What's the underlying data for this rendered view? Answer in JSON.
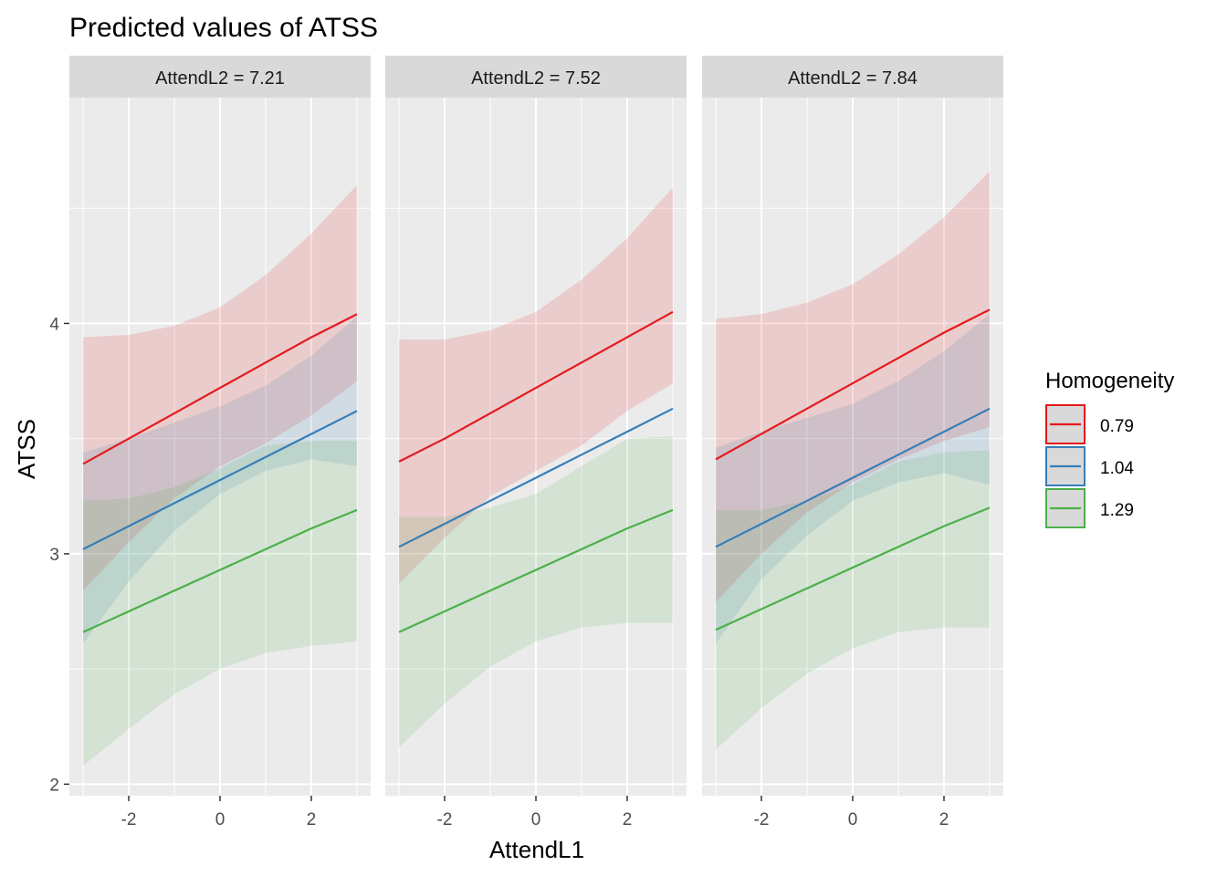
{
  "chart_data": {
    "type": "line",
    "title": "Predicted values of ATSS",
    "xlabel": "AttendL1",
    "ylabel": "ATSS",
    "xlim": [
      -3.3,
      3.3
    ],
    "ylim": [
      1.95,
      4.98
    ],
    "x_ticks": [
      -2,
      0,
      2
    ],
    "x_tick_labels": [
      "-2",
      "0",
      "2"
    ],
    "y_ticks": [
      2,
      3,
      4
    ],
    "y_tick_labels": [
      "2",
      "3",
      "4"
    ],
    "grid": true,
    "legend": {
      "title": "Homogeneity",
      "position": "right",
      "entries": [
        {
          "label": "0.79",
          "color": "#E41A1C"
        },
        {
          "label": "1.04",
          "color": "#377EB8"
        },
        {
          "label": "1.29",
          "color": "#4DAF4A"
        }
      ]
    },
    "x": [
      -3,
      -2,
      -1,
      0,
      1,
      2,
      3
    ],
    "panels": [
      {
        "strip": "AttendL2 = 7.21",
        "series": [
          {
            "name": "0.79",
            "color": "#E41A1C",
            "values": [
              3.39,
              3.5,
              3.61,
              3.72,
              3.83,
              3.94,
              4.04
            ],
            "lower": [
              2.84,
              3.05,
              3.24,
              3.38,
              3.48,
              3.6,
              3.75
            ],
            "upper": [
              3.94,
              3.95,
              3.99,
              4.07,
              4.21,
              4.39,
              4.6
            ]
          },
          {
            "name": "1.04",
            "color": "#377EB8",
            "values": [
              3.02,
              3.12,
              3.22,
              3.32,
              3.42,
              3.52,
              3.62
            ],
            "lower": [
              2.61,
              2.88,
              3.1,
              3.26,
              3.36,
              3.41,
              3.38
            ],
            "upper": [
              3.44,
              3.5,
              3.57,
              3.64,
              3.73,
              3.86,
              4.03
            ]
          },
          {
            "name": "1.29",
            "color": "#4DAF4A",
            "values": [
              2.66,
              2.75,
              2.84,
              2.93,
              3.02,
              3.11,
              3.19
            ],
            "lower": [
              2.08,
              2.24,
              2.39,
              2.5,
              2.57,
              2.6,
              2.62
            ],
            "upper": [
              3.23,
              3.24,
              3.29,
              3.37,
              3.47,
              3.49,
              3.49
            ]
          }
        ]
      },
      {
        "strip": "AttendL2 = 7.52",
        "series": [
          {
            "name": "0.79",
            "color": "#E41A1C",
            "values": [
              3.4,
              3.5,
              3.61,
              3.72,
              3.83,
              3.94,
              4.05
            ],
            "lower": [
              2.87,
              3.07,
              3.25,
              3.36,
              3.47,
              3.62,
              3.74
            ],
            "upper": [
              3.93,
              3.93,
              3.97,
              4.05,
              4.19,
              4.37,
              4.59
            ]
          },
          {
            "name": "1.04",
            "color": "#377EB8",
            "values": [
              3.03,
              3.13,
              3.23,
              3.33,
              3.43,
              3.53,
              3.63
            ],
            "lower": [
              2.67,
              2.91,
              3.11,
              3.24,
              3.32,
              3.38,
              3.36
            ]
          },
          {
            "name": "1.29",
            "color": "#4DAF4A",
            "values": [
              2.66,
              2.75,
              2.84,
              2.93,
              3.02,
              3.11,
              3.19
            ],
            "lower": [
              2.16,
              2.35,
              2.51,
              2.62,
              2.68,
              2.7,
              2.7
            ],
            "upper": [
              3.16,
              3.16,
              3.2,
              3.26,
              3.38,
              3.5,
              3.51
            ]
          }
        ]
      },
      {
        "strip": "AttendL2 = 7.84",
        "series": [
          {
            "name": "0.79",
            "color": "#E41A1C",
            "values": [
              3.41,
              3.52,
              3.63,
              3.74,
              3.85,
              3.96,
              4.06
            ],
            "lower": [
              2.79,
              3.0,
              3.18,
              3.31,
              3.41,
              3.49,
              3.55
            ],
            "upper": [
              4.02,
              4.04,
              4.09,
              4.17,
              4.3,
              4.46,
              4.66
            ]
          },
          {
            "name": "1.04",
            "color": "#377EB8",
            "values": [
              3.03,
              3.13,
              3.23,
              3.33,
              3.43,
              3.53,
              3.63
            ],
            "lower": [
              2.61,
              2.89,
              3.08,
              3.23,
              3.31,
              3.35,
              3.3
            ],
            "upper": [
              3.46,
              3.53,
              3.59,
              3.65,
              3.75,
              3.88,
              4.04
            ]
          },
          {
            "name": "1.29",
            "color": "#4DAF4A",
            "values": [
              2.67,
              2.76,
              2.85,
              2.94,
              3.03,
              3.12,
              3.2
            ],
            "lower": [
              2.15,
              2.33,
              2.48,
              2.59,
              2.66,
              2.68,
              2.68
            ],
            "upper": [
              3.19,
              3.19,
              3.23,
              3.3,
              3.4,
              3.44,
              3.45
            ]
          }
        ]
      }
    ]
  }
}
